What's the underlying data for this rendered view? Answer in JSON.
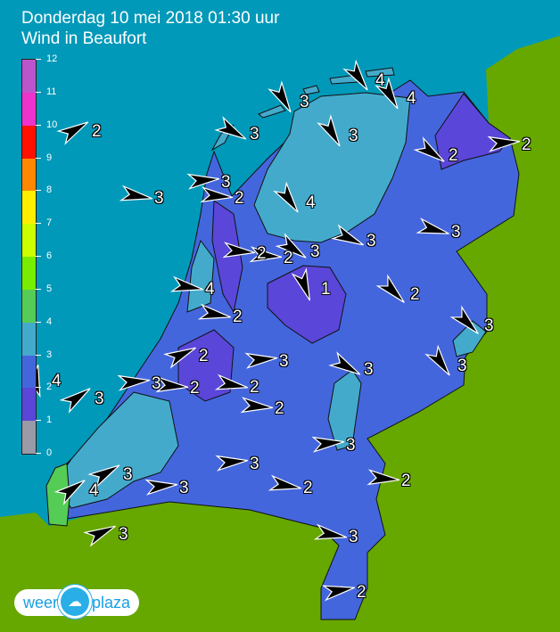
{
  "header": {
    "title": "Donderdag 10 mei 2018 01:30 uur",
    "subtitle": "Wind in Beaufort"
  },
  "legend": {
    "ticks": [
      "0",
      "1",
      "2",
      "3",
      "4",
      "5",
      "6",
      "7",
      "8",
      "9",
      "10",
      "11",
      "12"
    ],
    "colors": [
      "#9a9aa8",
      "#5a46d8",
      "#4466dd",
      "#44aacc",
      "#55cc55",
      "#77ee00",
      "#ccff00",
      "#ffee00",
      "#ff8800",
      "#ff1100",
      "#ee33cc",
      "#bb55cc"
    ]
  },
  "map_colors": {
    "sea": "#0099b9",
    "land_outside": "#66a800",
    "bft2": "#4466dd",
    "bft1": "#5a46d8",
    "bft3": "#44aacc",
    "bft4": "#55cc55"
  },
  "wind_labels": [
    "2",
    "3",
    "4",
    "3",
    "3",
    "2",
    "2",
    "4",
    "2",
    "2",
    "2",
    "3",
    "3",
    "2",
    "3",
    "3",
    "4",
    "4",
    "3",
    "4",
    "3",
    "3",
    "2",
    "2",
    "1",
    "2",
    "3",
    "3",
    "3",
    "3",
    "2",
    "2",
    "3",
    "3",
    "2",
    "2",
    "3",
    "3",
    "4",
    "3",
    "3",
    "2"
  ],
  "logo": {
    "left": "weer",
    "right": "plaza",
    "icon": "cloud-sun-icon"
  }
}
